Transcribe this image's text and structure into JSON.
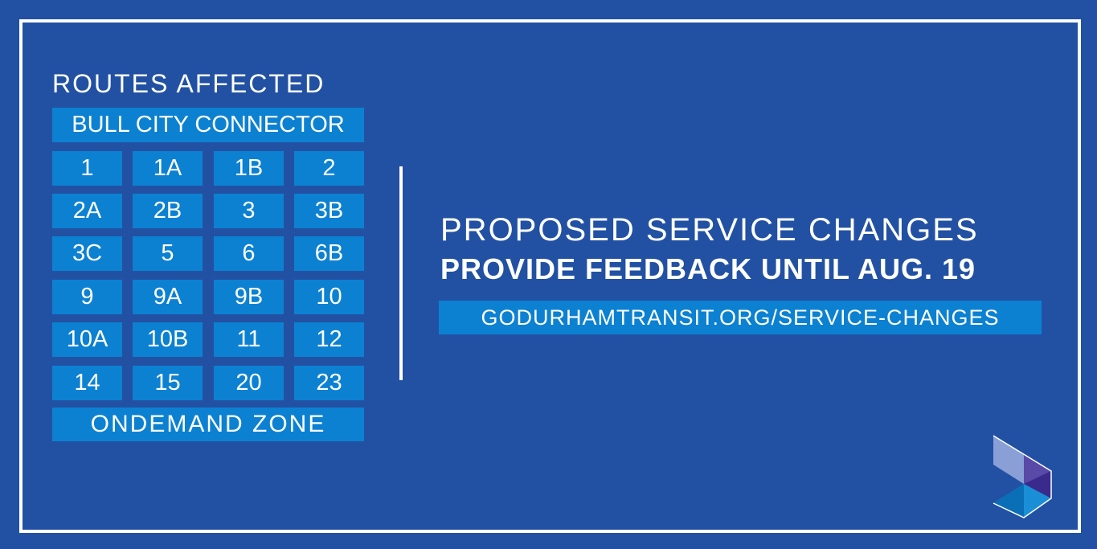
{
  "header": {
    "title": "ROUTES AFFECTED"
  },
  "routes": {
    "featured": "BULL CITY CONNECTOR",
    "list": [
      "1",
      "1A",
      "1B",
      "2",
      "2A",
      "2B",
      "3",
      "3B",
      "3C",
      "5",
      "6",
      "6B",
      "9",
      "9A",
      "9B",
      "10",
      "10A",
      "10B",
      "11",
      "12",
      "14",
      "15",
      "20",
      "23"
    ],
    "zone": "ONDEMAND ZONE"
  },
  "announcement": {
    "title": "PROPOSED SERVICE CHANGES",
    "subtitle": "PROVIDE FEEDBACK UNTIL AUG. 19",
    "url": "GODURHAMTRANSIT.ORG/SERVICE-CHANGES"
  }
}
